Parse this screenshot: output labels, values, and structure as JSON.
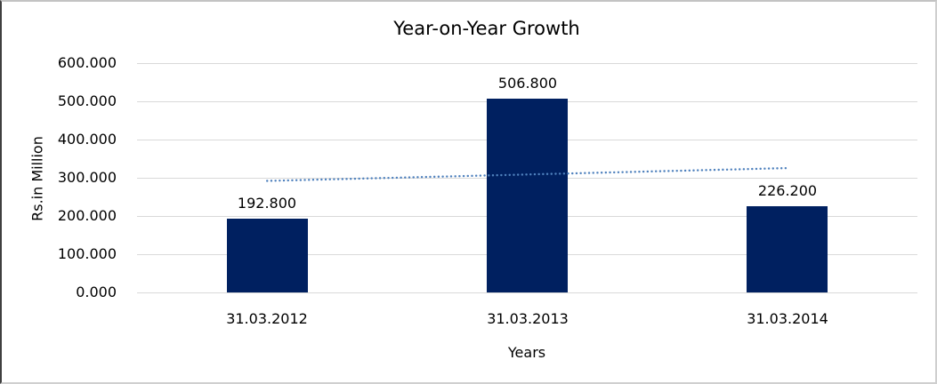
{
  "figure": {
    "title": "Year-on-Year Growth",
    "y_axis_title": "Rs.in Million",
    "x_axis_title": "Years"
  },
  "chart_data": {
    "type": "bar",
    "title": "Year-on-Year Growth",
    "xlabel": "Years",
    "ylabel": "Rs.in Million",
    "categories": [
      "31.03.2012",
      "31.03.2013",
      "31.03.2014"
    ],
    "series": [
      {
        "name": "Rs.in Million",
        "type": "bar",
        "values": [
          192.8,
          506.8,
          226.2
        ],
        "data_labels": [
          "192.800",
          "506.800",
          "226.200"
        ],
        "color": "#002060"
      },
      {
        "name": "Linear trendline",
        "type": "line",
        "line_style": "dotted",
        "values": [
          291.9,
          308.6,
          325.3
        ],
        "color": "#4f81bd"
      }
    ],
    "ylim": [
      0,
      600
    ],
    "y_tick_values": [
      600,
      500,
      400,
      300,
      200,
      100,
      0
    ],
    "y_tick_labels": [
      "600.000",
      "500.000",
      "400.000",
      "300.000",
      "200.000",
      "100.000",
      "0.000"
    ],
    "grid": true,
    "legend": "none",
    "colors": {
      "bar": "#002060",
      "trendline": "#4f81bd",
      "gridline": "#d9d9d9",
      "text": "#000000",
      "background": "#ffffff"
    }
  }
}
